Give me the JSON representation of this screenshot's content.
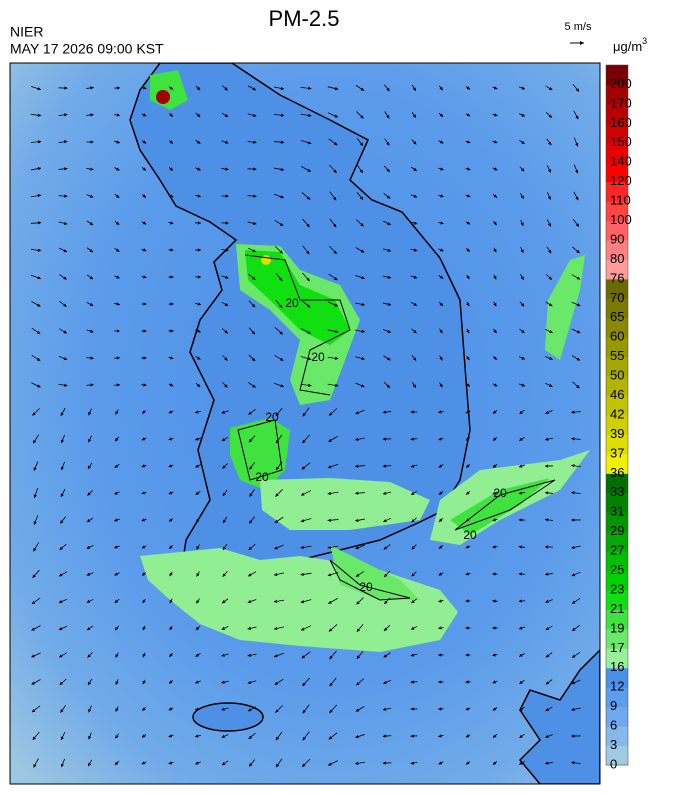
{
  "header": {
    "title": "PM-2.5",
    "agency": "NIER",
    "timestamp": "MAY 17 2026 09:00 KST",
    "wind_reference": "5 m/s"
  },
  "legend": {
    "unit": "μg/m",
    "unit_exponent": "3",
    "levels": [
      0,
      3,
      6,
      9,
      12,
      16,
      17,
      19,
      21,
      23,
      25,
      27,
      29,
      31,
      33,
      36,
      37,
      39,
      42,
      46,
      50,
      55,
      60,
      65,
      70,
      76,
      80,
      90,
      100,
      110,
      120,
      140,
      150,
      160,
      170,
      200
    ],
    "colors": [
      "#9fcae2",
      "#86b9e9",
      "#6fa8ec",
      "#5c9cec",
      "#4a8fe8",
      "#98f098",
      "#6ae86a",
      "#3fe23f",
      "#10e010",
      "#00d000",
      "#00be00",
      "#00aa00",
      "#009600",
      "#008400",
      "#006e00",
      "#f0f000",
      "#dede00",
      "#d0d000",
      "#c2c200",
      "#b4b400",
      "#a6a600",
      "#989800",
      "#8a8a00",
      "#7a7a00",
      "#6a6a00",
      "#ff9c9c",
      "#ff8080",
      "#ff6262",
      "#ff4444",
      "#ff2626",
      "#ff0000",
      "#e60000",
      "#d00000",
      "#ba0000",
      "#a40000",
      "#780000"
    ]
  },
  "map": {
    "contour_labels": [
      20,
      20,
      20,
      20,
      20,
      20,
      20
    ]
  }
}
